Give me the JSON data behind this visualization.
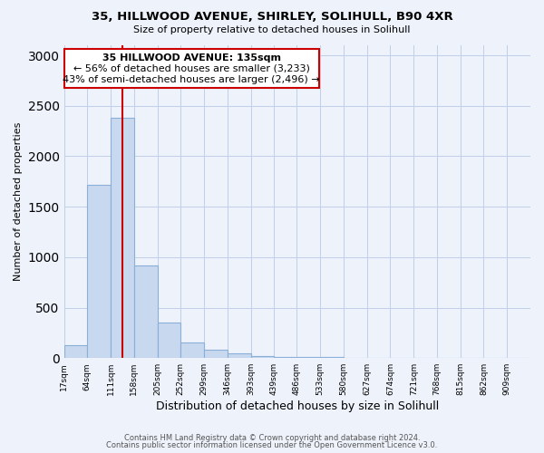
{
  "title1": "35, HILLWOOD AVENUE, SHIRLEY, SOLIHULL, B90 4XR",
  "title2": "Size of property relative to detached houses in Solihull",
  "xlabel": "Distribution of detached houses by size in Solihull",
  "ylabel": "Number of detached properties",
  "bar_color": "#c8d8ef",
  "bar_edge_color": "#8ab0d8",
  "background_color": "#eef2fb",
  "grid_color": "#c0cfe8",
  "annotation_line_color": "#cc0000",
  "annotation_box_color": "#cc0000",
  "annotation_text": "35 HILLWOOD AVENUE: 135sqm",
  "annotation_line1": "← 56% of detached houses are smaller (3,233)",
  "annotation_line2": "43% of semi-detached houses are larger (2,496) →",
  "footer1": "Contains HM Land Registry data © Crown copyright and database right 2024.",
  "footer2": "Contains public sector information licensed under the Open Government Licence v3.0.",
  "bins": [
    17,
    64,
    111,
    158,
    205,
    252,
    299,
    346,
    393,
    439,
    486,
    533,
    580,
    627,
    674,
    721,
    768,
    815,
    862,
    909,
    956
  ],
  "values": [
    125,
    1720,
    2380,
    920,
    350,
    155,
    80,
    50,
    20,
    15,
    10,
    8,
    5,
    3,
    2,
    1,
    1,
    1,
    1,
    1
  ],
  "property_size": 135,
  "ylim": [
    0,
    3100
  ],
  "yticks": [
    0,
    500,
    1000,
    1500,
    2000,
    2500,
    3000
  ]
}
